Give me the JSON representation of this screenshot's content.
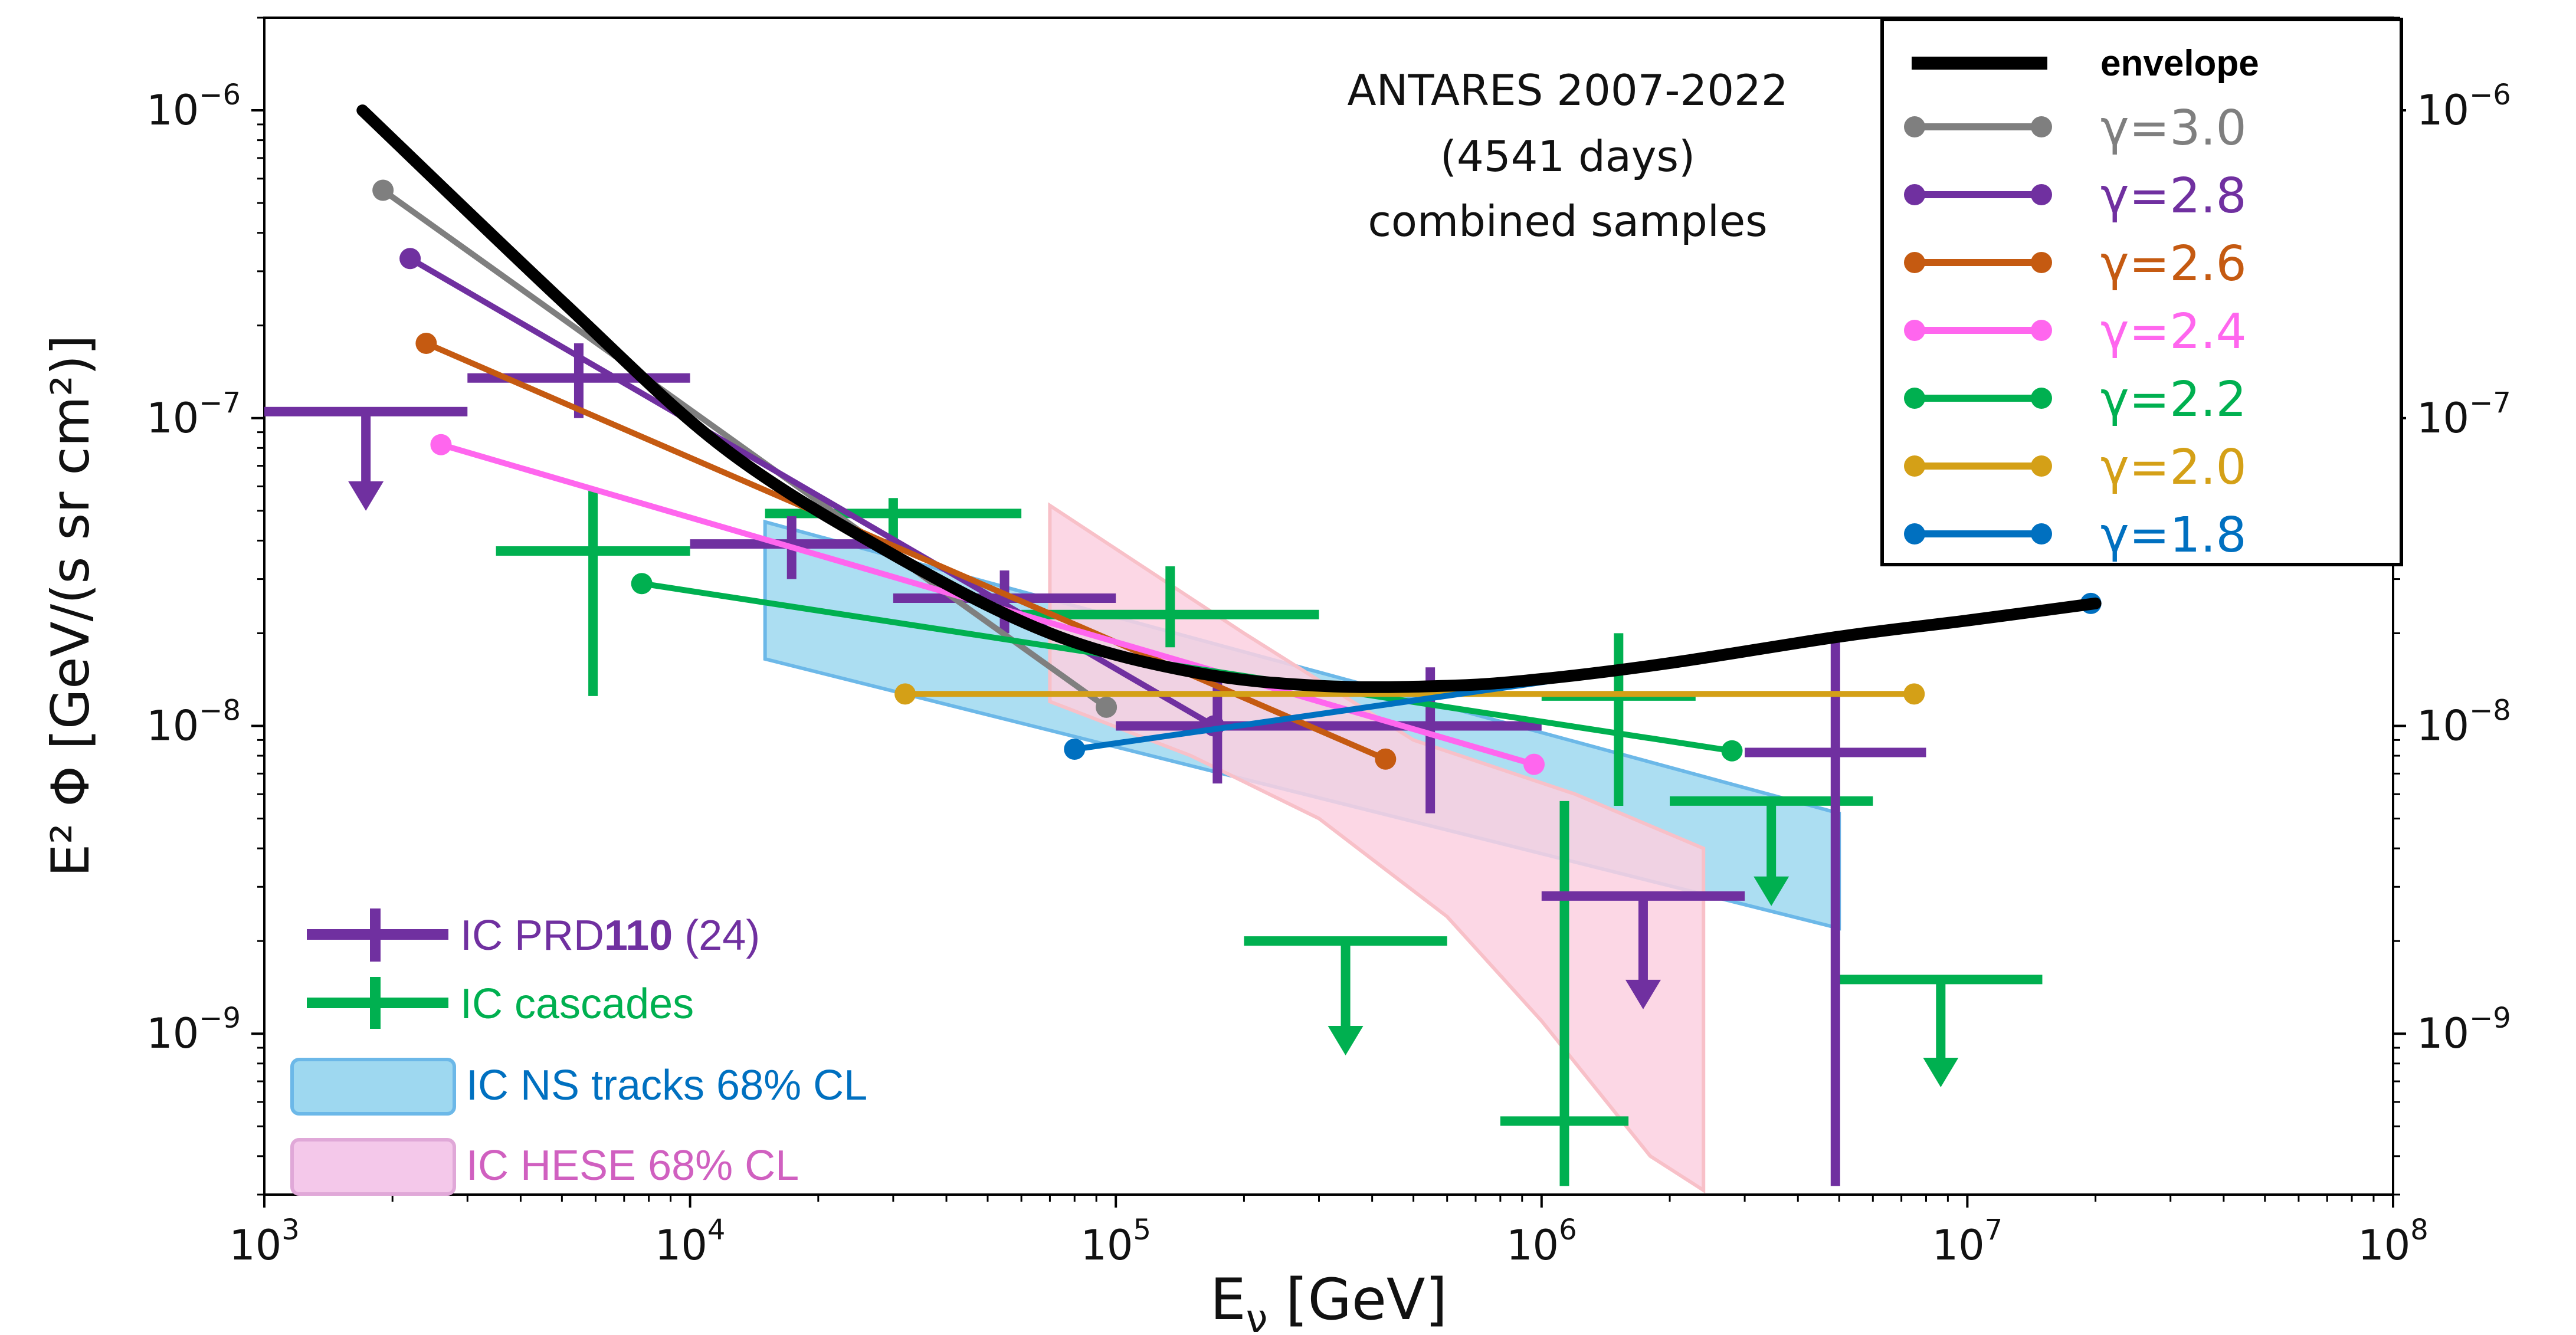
{
  "chart_data": {
    "type": "line",
    "xlabel_main": "E",
    "xlabel_sub": "ν",
    "xlabel_unit": " [GeV]",
    "ylabel": "E² Φ [GeV/(s sr cm²)]",
    "x_scale": "log",
    "y_scale": "log",
    "xlim": [
      1000,
      100000000
    ],
    "ylim": [
      3e-10,
      2e-06
    ],
    "x_ticks": [
      {
        "value": 1000,
        "base": "10",
        "exp": "3"
      },
      {
        "value": 10000,
        "base": "10",
        "exp": "4"
      },
      {
        "value": 100000,
        "base": "10",
        "exp": "5"
      },
      {
        "value": 1000000,
        "base": "10",
        "exp": "6"
      },
      {
        "value": 10000000,
        "base": "10",
        "exp": "7"
      },
      {
        "value": 100000000,
        "base": "10",
        "exp": "8"
      }
    ],
    "y_ticks": [
      {
        "value": 1e-09,
        "base": "10",
        "exp": "−9"
      },
      {
        "value": 1e-08,
        "base": "10",
        "exp": "−8"
      },
      {
        "value": 1e-07,
        "base": "10",
        "exp": "−7"
      },
      {
        "value": 1e-06,
        "base": "10",
        "exp": "−6"
      }
    ],
    "annotation": [
      "ANTARES 2007-2022",
      "(4541 days)",
      "combined samples"
    ],
    "legend_position": "top-right",
    "envelope": {
      "label": "envelope",
      "color": "#000000",
      "x": [
        1700,
        5000,
        12000,
        30000,
        70000,
        150000,
        300000,
        600000,
        1000000,
        2000000,
        5000000,
        10000000,
        20000000
      ],
      "y": [
        1e-06,
        2.4e-07,
        8e-08,
        3.6e-08,
        2e-08,
        1.5e-08,
        1.35e-08,
        1.35e-08,
        1.42e-08,
        1.6e-08,
        1.95e-08,
        2.2e-08,
        2.5e-08
      ]
    },
    "series": [
      {
        "name": "γ=3.0",
        "color": "#7f7f7f",
        "x": [
          1900,
          95000
        ],
        "y": [
          5.5e-07,
          1.15e-08
        ]
      },
      {
        "name": "γ=2.8",
        "color": "#7030a0",
        "x": [
          2200,
          170000
        ],
        "y": [
          3.3e-07,
          1e-08
        ]
      },
      {
        "name": "γ=2.6",
        "color": "#c55a11",
        "x": [
          2400,
          430000
        ],
        "y": [
          1.75e-07,
          7.8e-09
        ]
      },
      {
        "name": "γ=2.4",
        "color": "#ff66ee",
        "x": [
          2600,
          960000
        ],
        "y": [
          8.2e-08,
          7.5e-09
        ]
      },
      {
        "name": "γ=2.2",
        "color": "#00b050",
        "x": [
          7700,
          2800000
        ],
        "y": [
          2.9e-08,
          8.3e-09
        ]
      },
      {
        "name": "γ=2.0",
        "color": "#d4a017",
        "x": [
          32000,
          7500000
        ],
        "y": [
          1.27e-08,
          1.27e-08
        ]
      },
      {
        "name": "γ=1.8",
        "color": "#0070c0",
        "x": [
          80000,
          19500000
        ],
        "y": [
          8.4e-09,
          2.5e-08
        ]
      }
    ],
    "ic_prd": {
      "label_prefix": "IC PRD",
      "label_bold": "110",
      "label_suffix": " (24)",
      "color": "#7030a0",
      "points": [
        {
          "x_lo": 3000,
          "x_hi": 10000,
          "y": 1.35e-07,
          "y_lo": 1e-07,
          "y_hi": 1.75e-07
        },
        {
          "x_lo": 10000,
          "x_hi": 30000,
          "y": 3.9e-08,
          "y_lo": 3e-08,
          "y_hi": 4.8e-08
        },
        {
          "x_lo": 30000,
          "x_hi": 100000,
          "y": 2.6e-08,
          "y_lo": 2e-08,
          "y_hi": 3.2e-08
        },
        {
          "x_lo": 100000,
          "x_hi": 300000,
          "y": 1e-08,
          "y_lo": 6.5e-09,
          "y_hi": 1.4e-08
        },
        {
          "x_lo": 300000,
          "x_hi": 1000000,
          "y": 1e-08,
          "y_lo": 5.2e-09,
          "y_hi": 1.55e-08
        },
        {
          "x_lo": 3000000,
          "x_hi": 8000000,
          "y": 8.2e-09,
          "y_lo": 3.2e-10,
          "y_hi": 1.9e-08
        }
      ],
      "upper_limits": [
        {
          "x_lo": 1000,
          "x_hi": 3000,
          "y": 1.05e-07,
          "arrow_to": 5e-08
        },
        {
          "x_lo": 1000000,
          "x_hi": 3000000,
          "y": 2.8e-09,
          "arrow_to": 1.2e-09
        }
      ]
    },
    "ic_cascades": {
      "label": "IC cascades",
      "color": "#00b050",
      "points": [
        {
          "x_lo": 3500,
          "x_hi": 10000,
          "y": 3.7e-08,
          "y_lo": 1.25e-08,
          "y_hi": 5.9e-08
        },
        {
          "x_lo": 15000,
          "x_hi": 60000,
          "y": 4.9e-08,
          "y_lo": 3.6e-08,
          "y_hi": 5.5e-08
        },
        {
          "x_lo": 60000,
          "x_hi": 300000,
          "y": 2.3e-08,
          "y_lo": 1.8e-08,
          "y_hi": 3.3e-08
        },
        {
          "x_lo": 800000,
          "x_hi": 1600000,
          "y": 5.2e-10,
          "y_lo": 3.2e-10,
          "y_hi": 5.7e-09
        },
        {
          "x_lo": 1000000,
          "x_hi": 2300000,
          "y": 1.25e-08,
          "y_lo": 5.5e-09,
          "y_hi": 2e-08
        }
      ],
      "upper_limits": [
        {
          "x_lo": 200000,
          "x_hi": 600000,
          "y": 2e-09,
          "arrow_to": 8.5e-10
        },
        {
          "x_lo": 2000000,
          "x_hi": 6000000,
          "y": 5.7e-09,
          "arrow_to": 2.6e-09
        },
        {
          "x_lo": 5000000,
          "x_hi": 15000000,
          "y": 1.5e-09,
          "arrow_to": 6.7e-10
        }
      ]
    },
    "bands": [
      {
        "label": "IC NS tracks 68% CL",
        "fill": "#9ed8f0",
        "edge": "#6cb8e8",
        "label_color": "#0070c0",
        "x": [
          15000,
          15000,
          5000000,
          5000000
        ],
        "y": [
          4.6e-08,
          1.65e-08,
          2.2e-09,
          5.2e-09
        ]
      },
      {
        "label": "IC HESE 68% CL",
        "fill": "#fbd0e0",
        "edge": "#f8c0c8",
        "label_color": "#d060c0",
        "x": [
          70000,
          70000,
          150000,
          300000,
          600000,
          1000000,
          1800000,
          2400000,
          2400000,
          1200000,
          500000,
          200000
        ],
        "y": [
          5.2e-08,
          1.2e-08,
          8e-09,
          5e-09,
          2.4e-09,
          1.1e-09,
          4e-10,
          3.1e-10,
          4e-09,
          6e-09,
          9e-09,
          2e-08
        ]
      }
    ]
  }
}
